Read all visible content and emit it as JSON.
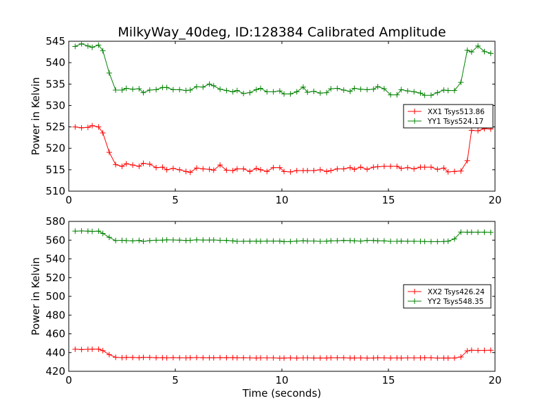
{
  "title": "MilkyWay_40deg, ID:128384 Calibrated Amplitude",
  "colors": {
    "xx": "#ff0000",
    "yy": "#008000",
    "axis": "#000000",
    "background": "#ffffff"
  },
  "chart_data": [
    {
      "type": "line",
      "title": "MilkyWay_40deg, ID:128384 Calibrated Amplitude",
      "xlabel": "",
      "ylabel": "Power in Kelvin",
      "xlim": [
        0,
        20
      ],
      "ylim": [
        510,
        545
      ],
      "xticks": [
        0,
        5,
        10,
        15,
        20
      ],
      "yticks": [
        510,
        515,
        520,
        525,
        530,
        535,
        540,
        545
      ],
      "grid": false,
      "marker": "+",
      "legend_position": "right",
      "x": [
        0.3,
        0.6,
        0.9,
        1.1,
        1.4,
        1.6,
        1.9,
        2.2,
        2.5,
        2.7,
        3.0,
        3.3,
        3.5,
        3.8,
        4.1,
        4.4,
        4.6,
        4.9,
        5.2,
        5.5,
        5.7,
        6.0,
        6.3,
        6.6,
        6.8,
        7.1,
        7.4,
        7.7,
        7.9,
        8.2,
        8.5,
        8.8,
        9.0,
        9.3,
        9.6,
        9.9,
        10.1,
        10.4,
        10.7,
        11.0,
        11.2,
        11.5,
        11.8,
        12.1,
        12.3,
        12.6,
        12.9,
        13.2,
        13.4,
        13.7,
        14.0,
        14.3,
        14.5,
        14.8,
        15.1,
        15.4,
        15.6,
        15.9,
        16.2,
        16.5,
        16.7,
        17.0,
        17.3,
        17.6,
        17.8,
        18.1,
        18.4,
        18.7,
        18.9,
        19.2,
        19.5,
        19.8
      ],
      "series": [
        {
          "name": "XX1 Tsys513.86",
          "color": "#ff0000",
          "values": [
            525.0,
            524.8,
            524.9,
            525.3,
            525.0,
            523.6,
            519.1,
            516.2,
            515.8,
            516.4,
            516.1,
            515.8,
            516.5,
            516.3,
            515.5,
            515.6,
            515.0,
            515.3,
            515.0,
            514.6,
            514.4,
            515.4,
            515.2,
            515.1,
            514.9,
            516.1,
            514.9,
            514.8,
            515.2,
            515.2,
            514.6,
            515.3,
            515.0,
            514.6,
            515.5,
            515.5,
            514.6,
            514.5,
            514.8,
            514.8,
            514.8,
            514.8,
            515.0,
            514.6,
            514.8,
            515.2,
            515.2,
            515.5,
            515.1,
            515.6,
            515.1,
            515.6,
            515.7,
            515.8,
            515.8,
            515.8,
            515.3,
            515.5,
            515.2,
            515.6,
            515.6,
            515.6,
            515.1,
            515.4,
            514.5,
            514.6,
            514.7,
            517.1,
            524.2,
            524.1,
            524.6,
            524.5
          ]
        },
        {
          "name": "YY1 Tsys524.17",
          "color": "#008000",
          "values": [
            543.8,
            544.4,
            543.9,
            543.6,
            544.1,
            542.8,
            537.6,
            533.6,
            533.6,
            534.0,
            533.8,
            533.9,
            533.0,
            533.6,
            533.7,
            534.2,
            534.2,
            533.7,
            533.7,
            533.5,
            533.6,
            534.4,
            534.3,
            535.0,
            534.6,
            533.8,
            533.5,
            533.2,
            533.5,
            532.8,
            533.0,
            533.7,
            534.0,
            533.2,
            533.2,
            533.4,
            532.7,
            532.7,
            533.2,
            534.3,
            533.1,
            533.3,
            532.9,
            533.0,
            533.9,
            534.0,
            533.6,
            533.3,
            534.0,
            533.8,
            533.7,
            533.8,
            534.4,
            533.9,
            532.5,
            532.5,
            533.7,
            533.4,
            533.2,
            532.9,
            532.4,
            532.4,
            533.0,
            533.6,
            533.5,
            533.5,
            535.4,
            542.9,
            542.5,
            543.9,
            542.6,
            542.2
          ]
        }
      ]
    },
    {
      "type": "line",
      "title": "",
      "xlabel": "Time (seconds)",
      "ylabel": "Power in Kelvin",
      "xlim": [
        0,
        20
      ],
      "ylim": [
        420,
        580
      ],
      "xticks": [
        0,
        5,
        10,
        15,
        20
      ],
      "yticks": [
        420,
        440,
        460,
        480,
        500,
        520,
        540,
        560,
        580
      ],
      "grid": false,
      "marker": "+",
      "legend_position": "right",
      "x": [
        0.3,
        0.6,
        0.9,
        1.1,
        1.4,
        1.6,
        1.9,
        2.2,
        2.5,
        2.7,
        3.0,
        3.3,
        3.5,
        3.8,
        4.1,
        4.4,
        4.6,
        4.9,
        5.2,
        5.5,
        5.7,
        6.0,
        6.3,
        6.6,
        6.8,
        7.1,
        7.4,
        7.7,
        7.9,
        8.2,
        8.5,
        8.8,
        9.0,
        9.3,
        9.6,
        9.9,
        10.1,
        10.4,
        10.7,
        11.0,
        11.2,
        11.5,
        11.8,
        12.1,
        12.3,
        12.6,
        12.9,
        13.2,
        13.4,
        13.7,
        14.0,
        14.3,
        14.5,
        14.8,
        15.1,
        15.4,
        15.6,
        15.9,
        16.2,
        16.5,
        16.7,
        17.0,
        17.3,
        17.6,
        17.8,
        18.1,
        18.4,
        18.7,
        18.9,
        19.2,
        19.5,
        19.8
      ],
      "series": [
        {
          "name": "XX2 Tsys426.24",
          "color": "#ff0000",
          "values": [
            443.6,
            443.2,
            443.5,
            443.6,
            443.6,
            442.1,
            437.8,
            435.0,
            434.6,
            434.8,
            434.8,
            434.5,
            434.9,
            434.8,
            434.5,
            434.5,
            434.3,
            434.6,
            434.4,
            434.3,
            434.5,
            434.7,
            434.5,
            434.4,
            434.4,
            434.6,
            434.5,
            434.6,
            434.4,
            434.4,
            434.3,
            434.2,
            434.3,
            434.3,
            434.3,
            434.0,
            434.1,
            434.3,
            434.1,
            434.3,
            434.3,
            434.2,
            434.2,
            434.2,
            434.4,
            434.4,
            434.4,
            434.2,
            434.2,
            434.3,
            434.1,
            434.2,
            434.4,
            434.3,
            434.2,
            434.3,
            434.2,
            434.3,
            434.3,
            434.3,
            434.4,
            434.4,
            434.1,
            434.2,
            434.1,
            434.2,
            435.3,
            441.8,
            442.5,
            442.3,
            442.4,
            442.5
          ]
        },
        {
          "name": "YY2 Tsys548.35",
          "color": "#008000",
          "values": [
            569.6,
            569.8,
            569.6,
            569.4,
            569.6,
            567.2,
            563.0,
            559.5,
            559.8,
            559.5,
            559.3,
            559.7,
            558.7,
            559.5,
            559.9,
            560.0,
            560.3,
            560.2,
            560.0,
            559.6,
            559.8,
            560.3,
            560.1,
            560.1,
            560.2,
            559.8,
            559.7,
            559.3,
            558.7,
            558.8,
            558.9,
            558.9,
            558.8,
            559.0,
            559.0,
            559.0,
            558.4,
            558.5,
            559.0,
            559.4,
            559.1,
            559.1,
            558.7,
            558.9,
            559.3,
            559.4,
            559.7,
            559.5,
            559.3,
            559.0,
            559.7,
            559.6,
            559.3,
            559.2,
            558.7,
            558.7,
            559.0,
            558.8,
            558.8,
            558.7,
            558.5,
            558.4,
            558.4,
            558.6,
            558.9,
            561.3,
            568.6,
            568.4,
            568.5,
            568.4,
            568.5,
            568.3
          ]
        }
      ]
    }
  ]
}
